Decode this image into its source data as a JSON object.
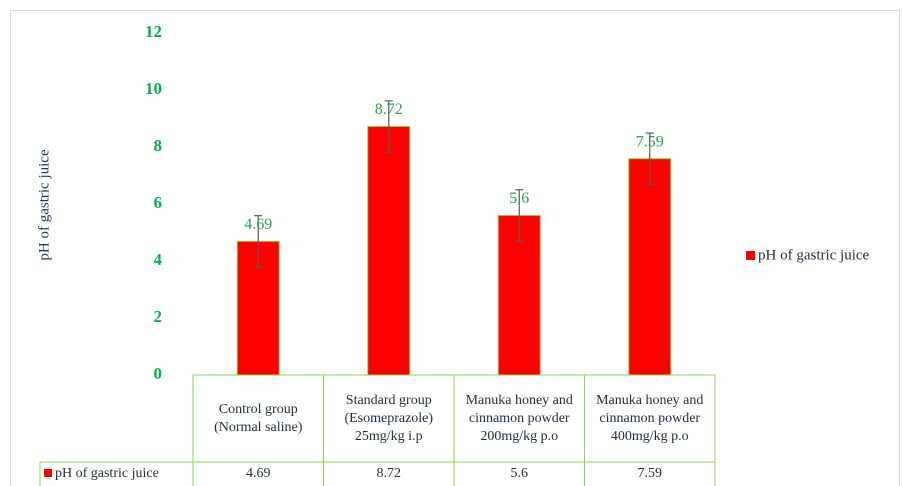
{
  "chart_data": {
    "type": "bar",
    "y_label": "pH of gastric juice",
    "categories": [
      "Control group (Normal saline)",
      "Standard group (Esomeprazole) 25mg/kg i.p",
      "Manuka honey and cinnamon powder 200mg/kg p.o",
      "Manuka honey and cinnamon powder 400mg/kg p.o"
    ],
    "series": [
      {
        "name": "pH of gastric juice",
        "color": "#ff0000",
        "values": [
          4.69,
          8.72,
          5.6,
          7.59
        ],
        "errors": [
          0.9,
          0.9,
          0.9,
          0.9
        ]
      }
    ],
    "ylim": [
      0,
      12
    ],
    "yticks": [
      0,
      2,
      4,
      6,
      8,
      10,
      12
    ],
    "grid": false,
    "legend": "right",
    "data_table": true
  }
}
